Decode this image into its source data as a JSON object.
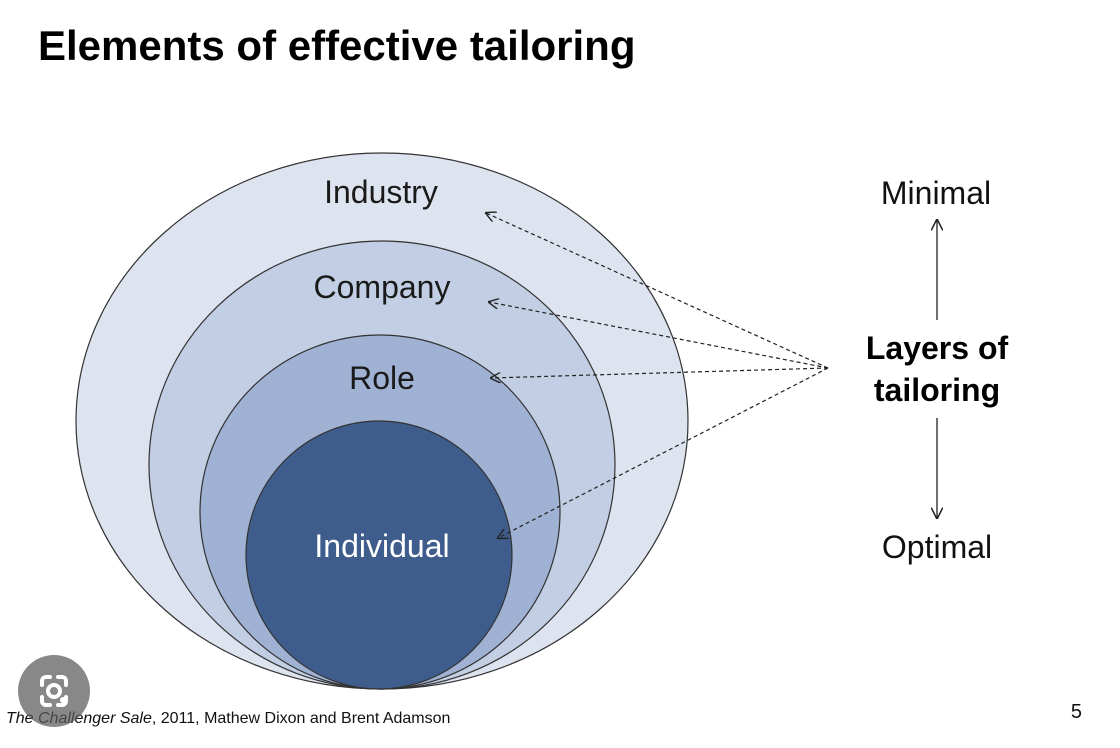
{
  "slide": {
    "title": "Elements of effective tailoring",
    "page_number": "5"
  },
  "diagram": {
    "layers": [
      {
        "label": "Industry",
        "fill": "#dde3ef",
        "text_color": "#1a1a1a"
      },
      {
        "label": "Company",
        "fill": "#c2cee3",
        "text_color": "#1a1a1a"
      },
      {
        "label": "Role",
        "fill": "#9fb2d3",
        "text_color": "#1a1a1a"
      },
      {
        "label": "Individual",
        "fill": "#3f5d8c",
        "text_color": "#ffffff"
      }
    ],
    "center_label_line1": "Layers of",
    "center_label_line2": "tailoring",
    "scale_top": "Minimal",
    "scale_bottom": "Optimal"
  },
  "footer": {
    "book_title": "The Challenger Sale",
    "citation_rest": ", 2011, Mathew Dixon and Brent Adamson"
  },
  "overlay": {
    "icon": "google-lens-icon"
  }
}
